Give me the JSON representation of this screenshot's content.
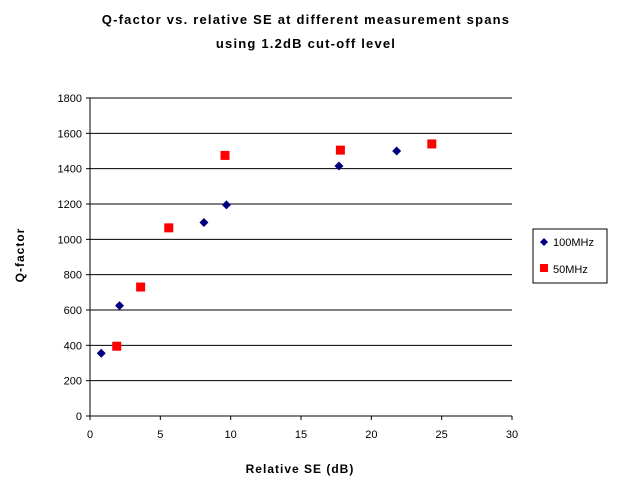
{
  "chart_data": {
    "type": "scatter",
    "title_line1": "Q-factor vs. relative SE at different measurement spans",
    "title_line2": "using 1.2dB cut-off level",
    "xlabel": "Relative SE (dB)",
    "ylabel": "Q-factor",
    "xlim": [
      0,
      30
    ],
    "ylim": [
      0,
      1800
    ],
    "xticks": [
      0,
      5,
      10,
      15,
      20,
      25,
      30
    ],
    "yticks": [
      0,
      200,
      400,
      600,
      800,
      1000,
      1200,
      1400,
      1600,
      1800
    ],
    "grid": "horizontal",
    "legend_position": "right",
    "series": [
      {
        "name": "100MHz",
        "marker": "diamond",
        "color": "#000080",
        "points": [
          [
            0.8,
            355
          ],
          [
            2.1,
            625
          ],
          [
            8.1,
            1095
          ],
          [
            9.7,
            1195
          ],
          [
            17.7,
            1415
          ],
          [
            21.8,
            1500
          ]
        ]
      },
      {
        "name": "50MHz",
        "marker": "square",
        "color": "#ff0000",
        "points": [
          [
            1.9,
            395
          ],
          [
            3.6,
            730
          ],
          [
            5.6,
            1065
          ],
          [
            9.6,
            1475
          ],
          [
            17.8,
            1505
          ],
          [
            24.3,
            1540
          ]
        ]
      }
    ]
  }
}
